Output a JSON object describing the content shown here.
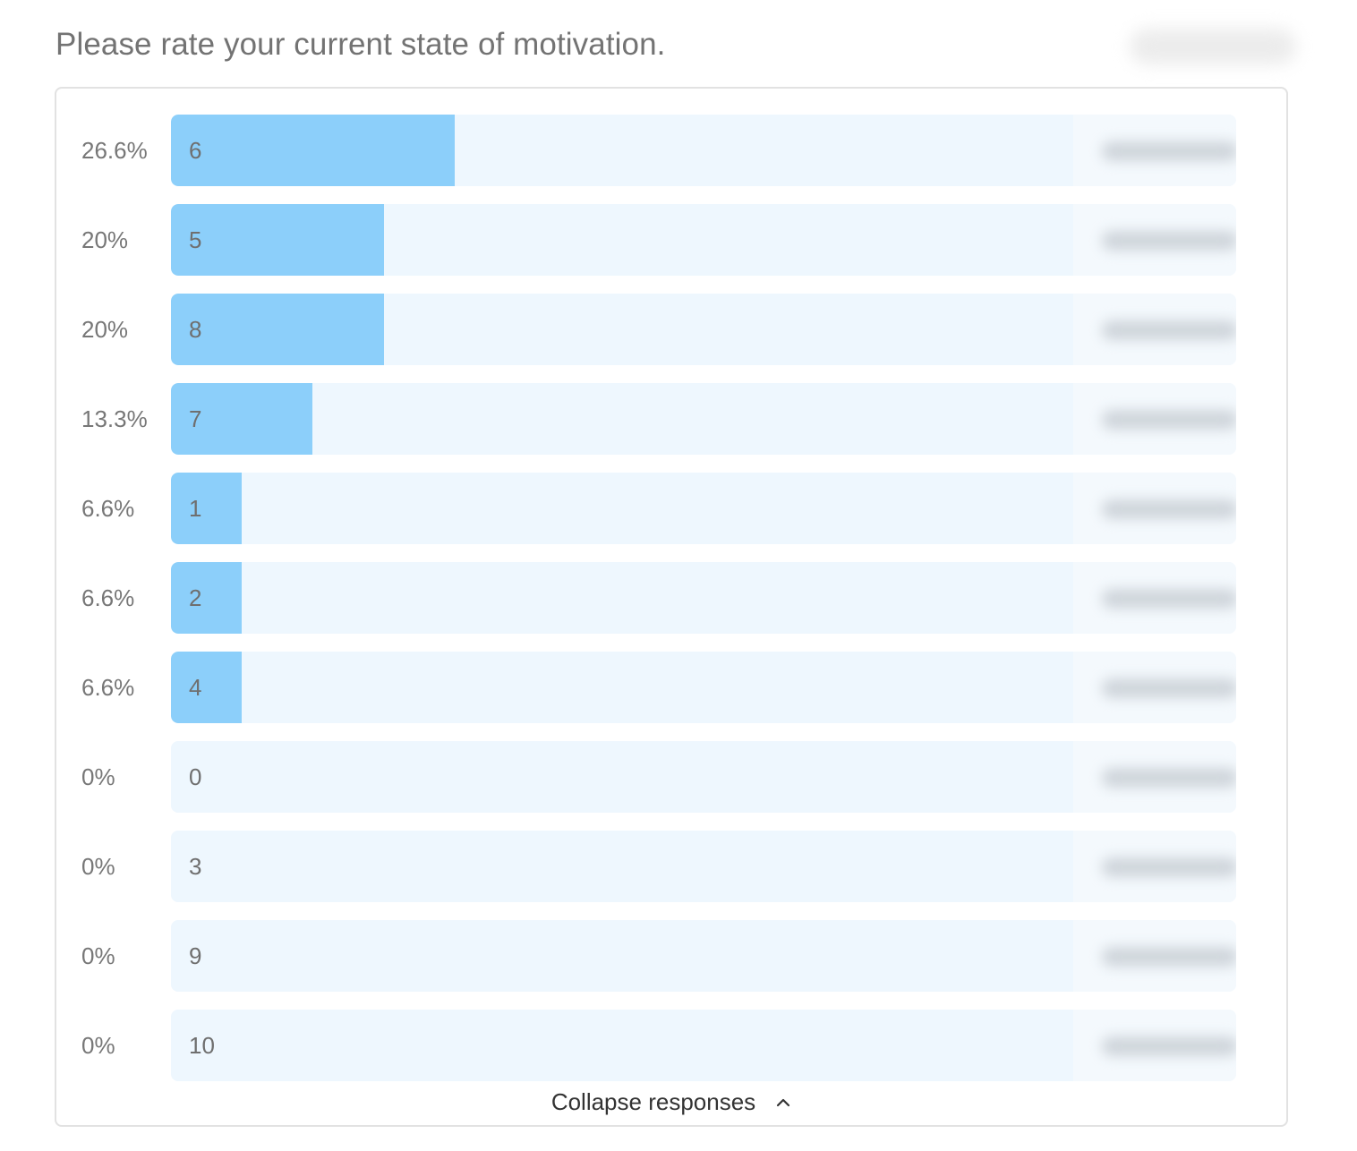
{
  "question": {
    "title": "Please rate your current state of motivation."
  },
  "colors": {
    "bar_fill": "#8ccffa",
    "bar_track": "#eef7fe",
    "text_muted": "#777777"
  },
  "chart_data": {
    "type": "bar",
    "orientation": "horizontal",
    "categories": [
      "6",
      "5",
      "8",
      "7",
      "1",
      "2",
      "4",
      "0",
      "3",
      "9",
      "10"
    ],
    "values": [
      26.6,
      20,
      20,
      13.3,
      6.6,
      6.6,
      6.6,
      0,
      0,
      0,
      0
    ],
    "value_labels": [
      "26.6%",
      "20%",
      "20%",
      "13.3%",
      "6.6%",
      "6.6%",
      "6.6%",
      "0%",
      "0%",
      "0%",
      "0%"
    ],
    "xlim": [
      0,
      100
    ]
  },
  "footer": {
    "collapse_label": "Collapse responses",
    "collapse_icon": "chevron-up-icon"
  }
}
